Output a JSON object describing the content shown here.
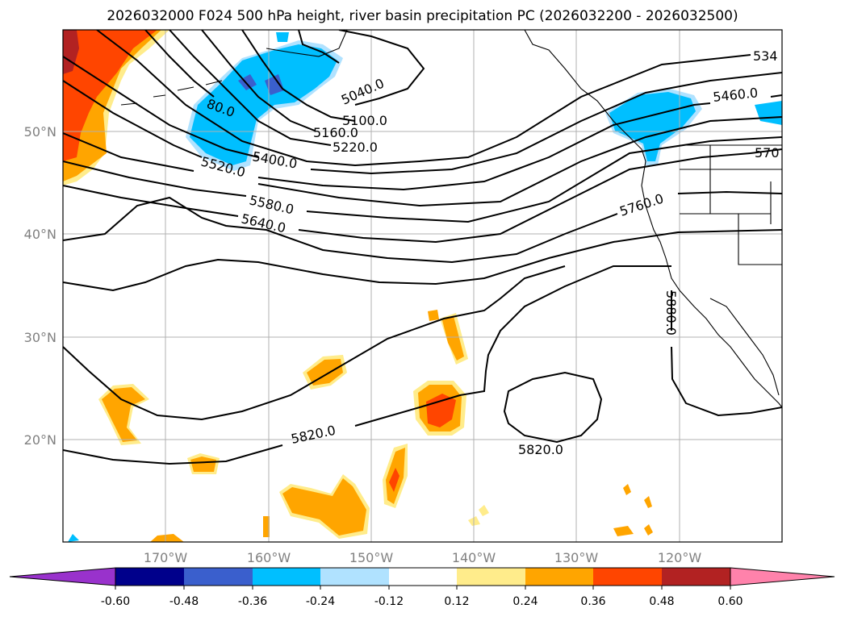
{
  "title": "2026032000 F024 500 hPa height, river basin precipitation PC (2026032200 - 2026032500)",
  "latitude_labels": [
    "50°N",
    "40°N",
    "30°N",
    "20°N"
  ],
  "longitude_labels": [
    "170°W",
    "160°W",
    "150°W",
    "140°W",
    "130°W",
    "120°W"
  ],
  "contour_labels": [
    "5040.0",
    "5100.0",
    "5160.0",
    "5220.0",
    "80.0",
    "5400.0",
    "5520.0",
    "5580.0",
    "5640.0",
    "5820.0",
    "5820.0",
    "5760.0",
    "5880.0",
    "5460.0",
    "534",
    "570"
  ],
  "colorbar": {
    "tick_labels": [
      "-0.60",
      "-0.48",
      "-0.36",
      "-0.24",
      "-0.12",
      "0.12",
      "0.24",
      "0.36",
      "0.48",
      "0.60"
    ],
    "colors": [
      "#9932cc",
      "#00008b",
      "#3a5fcd",
      "#00bfff",
      "#b0e2ff",
      "#ffffff",
      "#ffec8b",
      "#ffa500",
      "#ff4500",
      "#b22222",
      "#ff82ab"
    ]
  },
  "fill_colors": {
    "neg_light": "#b0e2ff",
    "neg_mid": "#00bfff",
    "neg_dark": "#3a5fcd",
    "pos_light": "#ffec8b",
    "pos_mid": "#ffa500",
    "pos_strong": "#ff4500",
    "pos_darker": "#b22222"
  }
}
